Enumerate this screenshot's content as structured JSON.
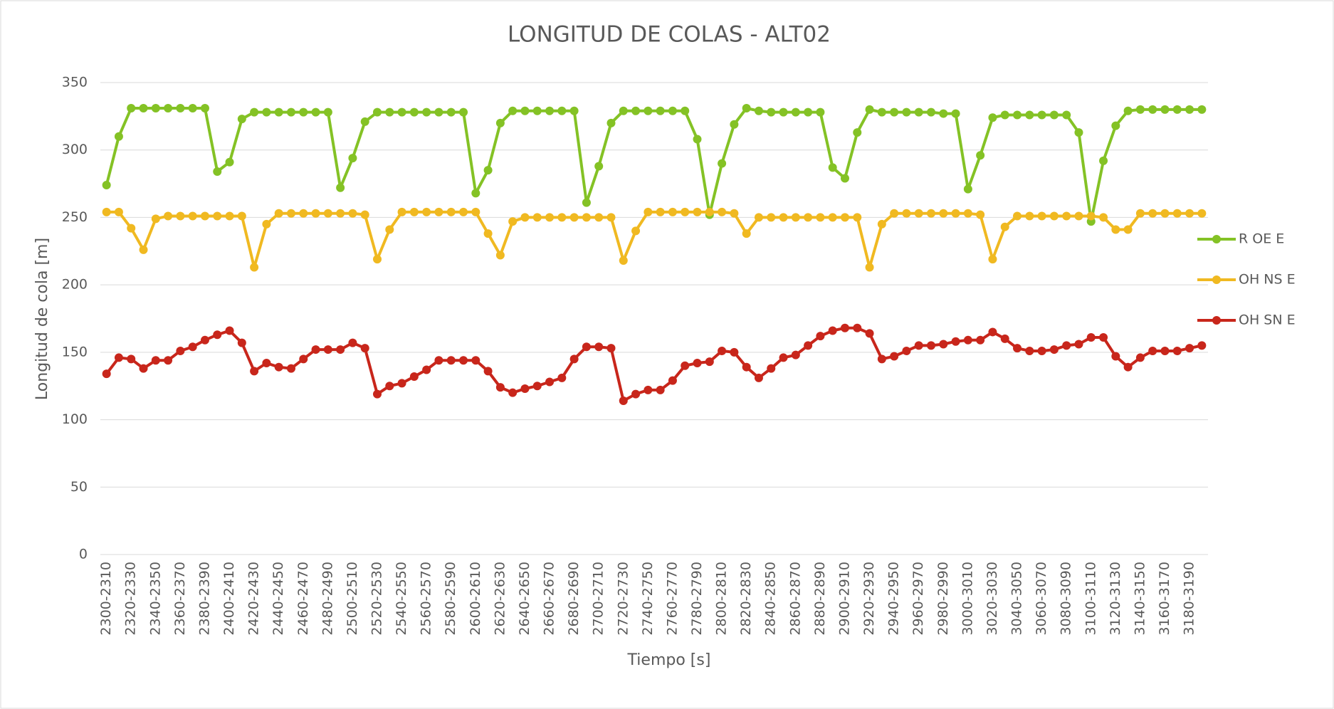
{
  "chart_data": {
    "type": "line",
    "title": "LONGITUD DE COLAS - ALT02",
    "x_label": "Tiempo [s]",
    "y_label": "Longitud de cola [m]",
    "categories": [
      "2300-2310",
      null,
      "2320-2330",
      null,
      "2340-2350",
      null,
      "2360-2370",
      null,
      "2380-2390",
      null,
      "2400-2410",
      null,
      "2420-2430",
      null,
      "2440-2450",
      null,
      "2460-2470",
      null,
      "2480-2490",
      null,
      "2500-2510",
      null,
      "2520-2530",
      null,
      "2540-2550",
      null,
      "2560-2570",
      null,
      "2580-2590",
      null,
      "2600-2610",
      null,
      "2620-2630",
      null,
      "2640-2650",
      null,
      "2660-2670",
      null,
      "2680-2690",
      null,
      "2700-2710",
      null,
      "2720-2730",
      null,
      "2740-2750",
      null,
      "2760-2770",
      null,
      "2780-2790",
      null,
      "2800-2810",
      null,
      "2820-2830",
      null,
      "2840-2850",
      null,
      "2860-2870",
      null,
      "2880-2890",
      null,
      "2900-2910",
      null,
      "2920-2930",
      null,
      "2940-2950",
      null,
      "2960-2970",
      null,
      "2980-2990",
      null,
      "3000-3010",
      null,
      "3020-3030",
      null,
      "3040-3050",
      null,
      "3060-3070",
      null,
      "3080-3090",
      null,
      "3100-3110",
      null,
      "3120-3130",
      null,
      "3140-3150",
      null,
      "3160-3170",
      null,
      "3180-3190",
      null
    ],
    "series": [
      {
        "name": "R OE E",
        "color": "#84c225",
        "values": [
          274,
          310,
          331,
          331,
          331,
          331,
          331,
          331,
          331,
          284,
          291,
          323,
          328,
          328,
          328,
          328,
          328,
          328,
          328,
          272,
          294,
          321,
          328,
          328,
          328,
          328,
          328,
          328,
          328,
          328,
          268,
          285,
          320,
          329,
          329,
          329,
          329,
          329,
          329,
          261,
          288,
          320,
          329,
          329,
          329,
          329,
          329,
          329,
          308,
          252,
          290,
          319,
          331,
          329,
          328,
          328,
          328,
          328,
          328,
          287,
          279,
          313,
          330,
          328,
          328,
          328,
          328,
          328,
          327,
          327,
          271,
          296,
          324,
          326,
          326,
          326,
          326,
          326,
          326,
          313,
          247,
          292,
          318,
          329,
          330,
          330,
          330,
          330,
          330,
          330
        ]
      },
      {
        "name": "OH NS E",
        "color": "#f0b921",
        "values": [
          254,
          254,
          242,
          226,
          249,
          251,
          251,
          251,
          251,
          251,
          251,
          251,
          213,
          245,
          253,
          253,
          253,
          253,
          253,
          253,
          253,
          252,
          219,
          241,
          254,
          254,
          254,
          254,
          254,
          254,
          254,
          238,
          222,
          247,
          250,
          250,
          250,
          250,
          250,
          250,
          250,
          250,
          218,
          240,
          254,
          254,
          254,
          254,
          254,
          254,
          254,
          253,
          238,
          250,
          250,
          250,
          250,
          250,
          250,
          250,
          250,
          250,
          213,
          245,
          253,
          253,
          253,
          253,
          253,
          253,
          253,
          252,
          219,
          243,
          251,
          251,
          251,
          251,
          251,
          251,
          251,
          250,
          241,
          241,
          253,
          253,
          253,
          253,
          253,
          253
        ]
      },
      {
        "name": "OH SN E",
        "color": "#c8261b",
        "values": [
          134,
          146,
          145,
          138,
          144,
          144,
          151,
          154,
          159,
          163,
          166,
          157,
          136,
          142,
          139,
          138,
          145,
          152,
          152,
          152,
          157,
          153,
          119,
          125,
          127,
          132,
          137,
          144,
          144,
          144,
          144,
          136,
          124,
          120,
          123,
          125,
          128,
          131,
          145,
          154,
          154,
          153,
          114,
          119,
          122,
          122,
          129,
          140,
          142,
          143,
          151,
          150,
          139,
          131,
          138,
          146,
          148,
          155,
          162,
          166,
          168,
          168,
          164,
          145,
          147,
          151,
          155,
          155,
          156,
          158,
          159,
          159,
          165,
          160,
          153,
          151,
          151,
          152,
          155,
          156,
          161,
          161,
          147,
          139,
          146,
          151,
          151,
          151,
          153,
          155
        ]
      }
    ],
    "ylim": [
      0,
      350
    ],
    "yticks": [
      0,
      50,
      100,
      150,
      200,
      250,
      300,
      350
    ],
    "grid": true,
    "legend": "right"
  }
}
